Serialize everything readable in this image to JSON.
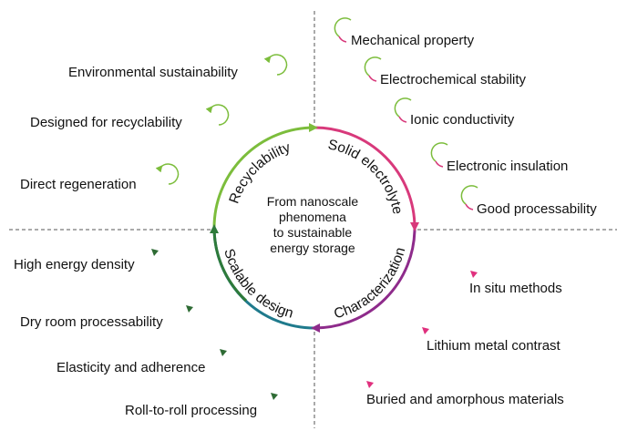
{
  "center": [
    "From nanoscale",
    "phenomena",
    "to sustainable",
    "energy storage"
  ],
  "sections": [
    {
      "title": "Recyclability",
      "items": [
        "Environmental sustainability",
        "Designed for recyclability",
        "Direct regeneration"
      ]
    },
    {
      "title": "Solid electrolyte",
      "items": [
        "Mechanical property",
        "Electrochemical stability",
        "Ionic conductivity",
        "Electronic insulation",
        "Good processability"
      ]
    },
    {
      "title": "Characterization",
      "items": [
        "In situ methods",
        "Lithium metal contrast",
        "Buried and amorphous materials"
      ]
    },
    {
      "title": "Scalable design",
      "items": [
        "High energy density",
        "Dry room processability",
        "Elasticity and adherence",
        "Roll-to-roll processing"
      ]
    }
  ]
}
